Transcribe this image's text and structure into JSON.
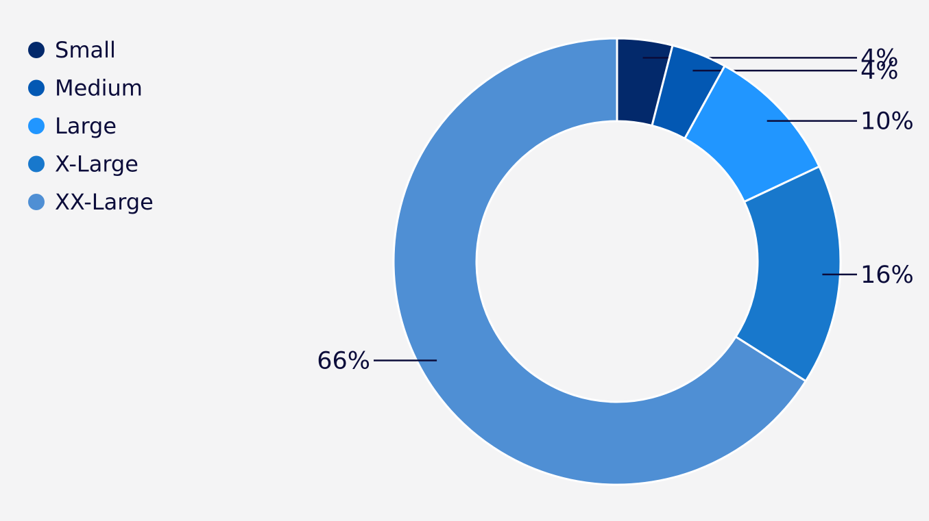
{
  "chart_data": {
    "type": "donut",
    "categories": [
      "Small",
      "Medium",
      "Large",
      "X-Large",
      "XX-Large"
    ],
    "values": [
      4,
      4,
      10,
      16,
      66
    ],
    "value_labels": [
      "4%",
      "4%",
      "10%",
      "16%",
      "66%"
    ],
    "colors": [
      "#03296b",
      "#0358b3",
      "#2196ff",
      "#1878cc",
      "#4f8fd4"
    ],
    "legend": "top-left"
  }
}
